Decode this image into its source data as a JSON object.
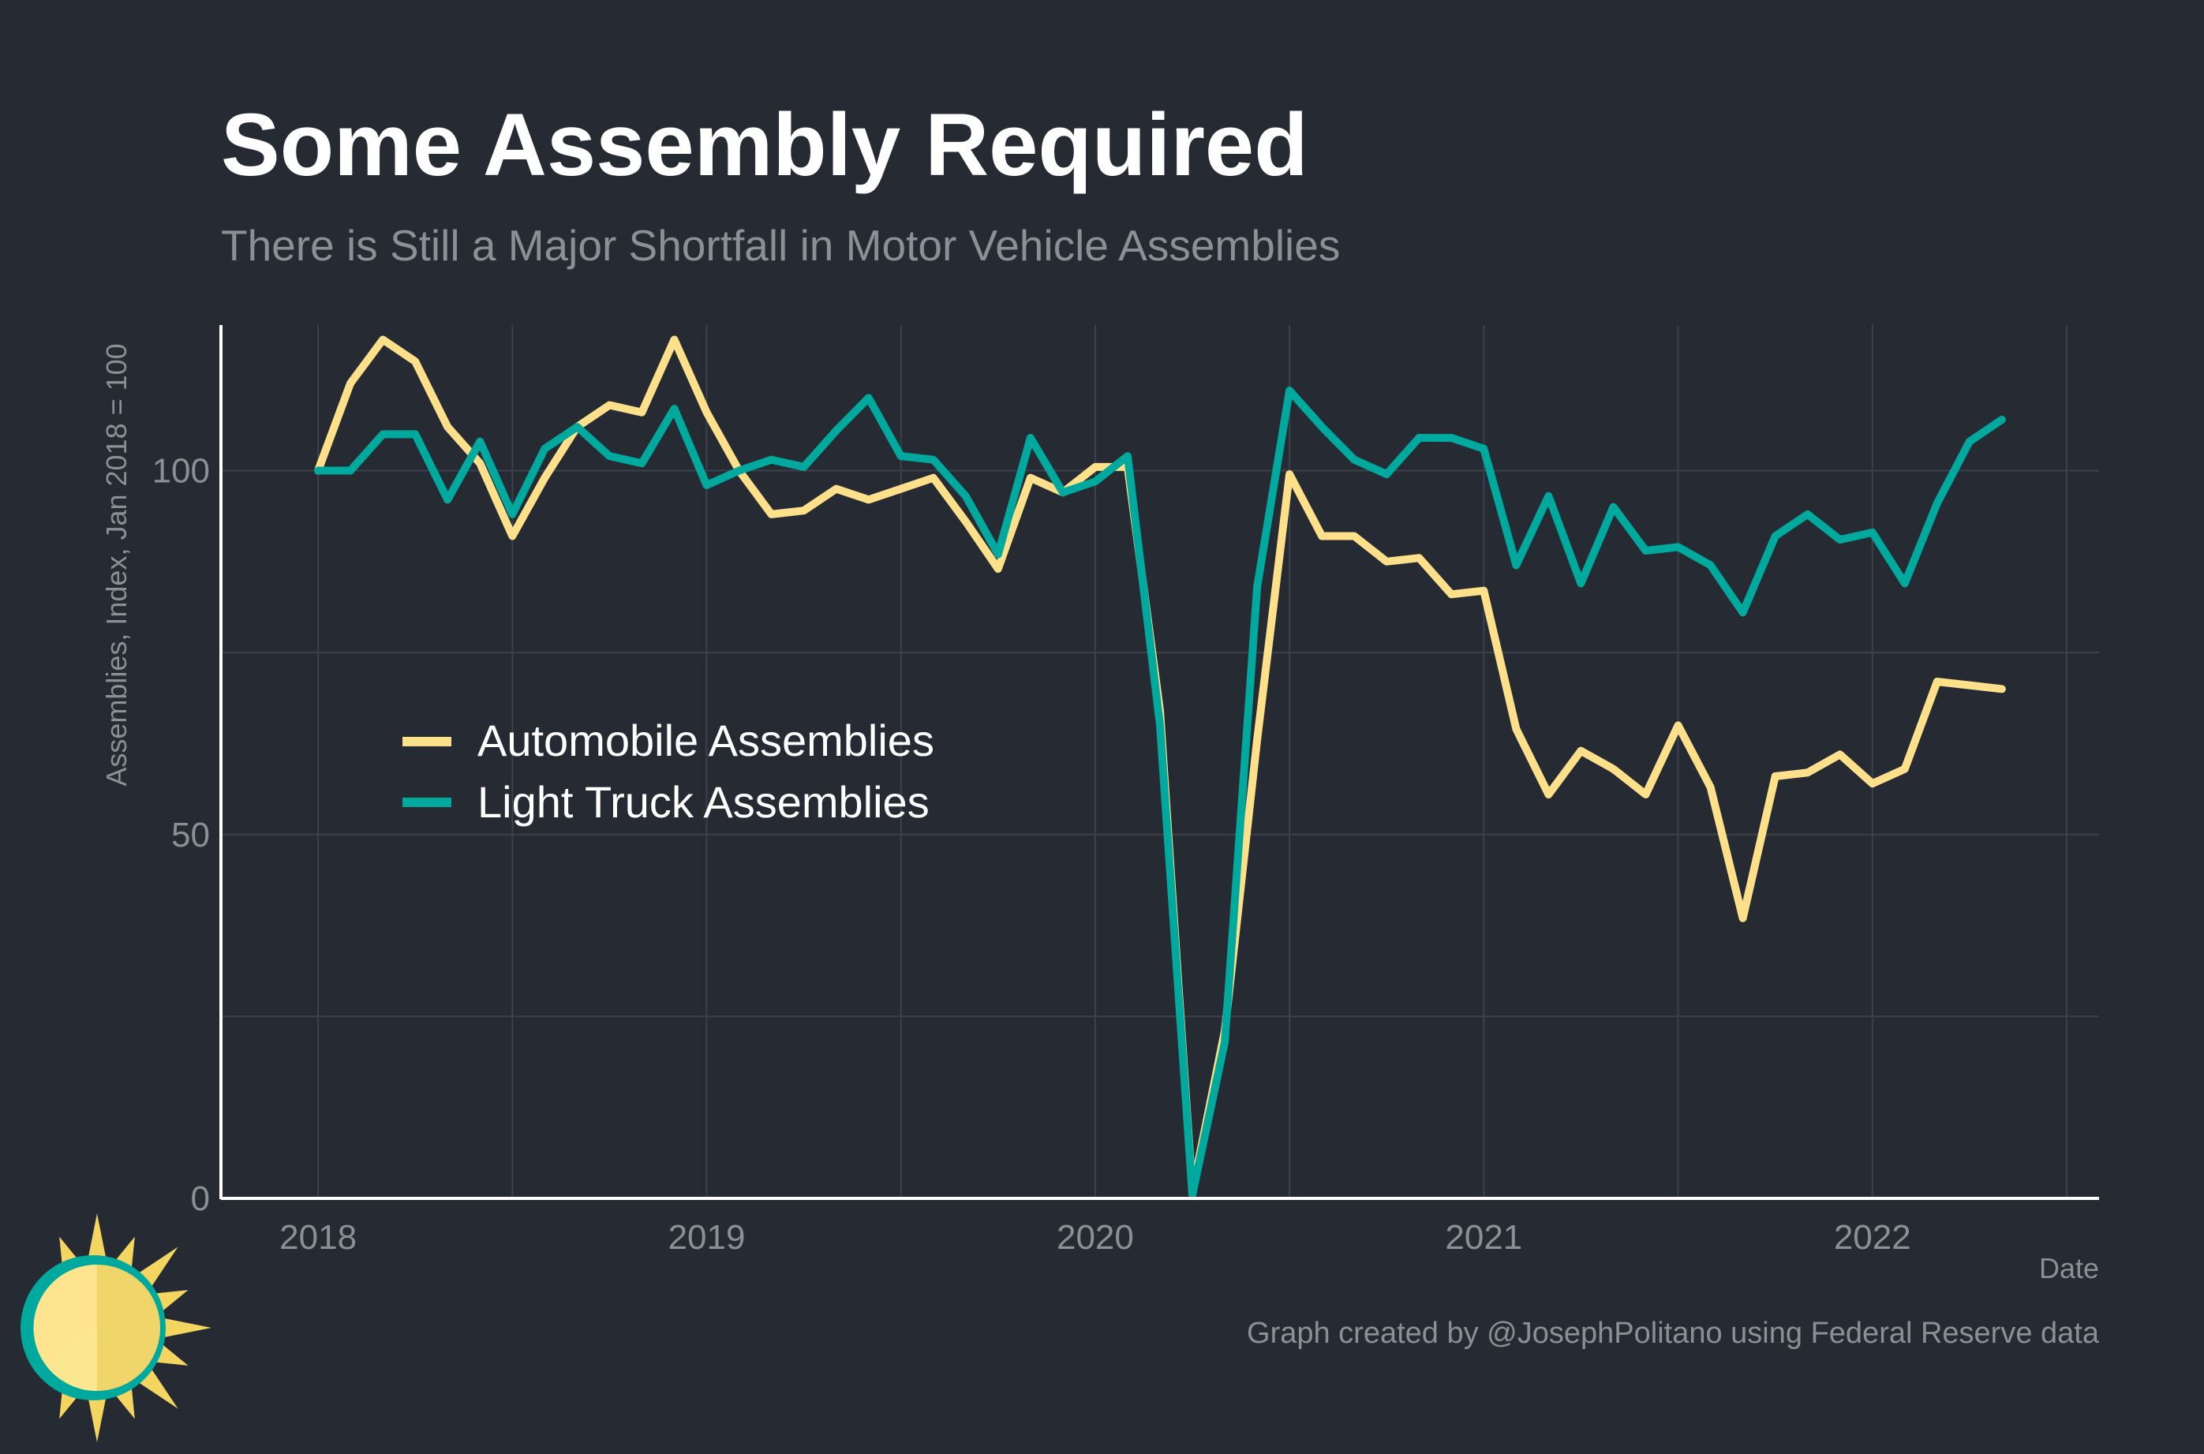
{
  "colors": {
    "background": "#252a33",
    "grid": "#3c414b",
    "axis": "#ffffff",
    "muted_text": "#8c8f96",
    "automobile": "#fee08b",
    "light_truck": "#00a99d"
  },
  "icon": "sun-logo-icon",
  "chart_data": {
    "type": "line",
    "title": "Some Assembly Required",
    "subtitle": "There is Still a Major Shortfall in Motor Vehicle Assemblies",
    "xlabel": "Date",
    "ylabel": "Assemblies, Index, Jan 2018 = 100",
    "x_ticks": [
      "2018",
      "2019",
      "2020",
      "2021",
      "2022"
    ],
    "y_ticks": [
      "0",
      "50",
      "100"
    ],
    "ylim": [
      0,
      120
    ],
    "xlim": [
      "2017-10",
      "2022-08"
    ],
    "grid": true,
    "legend_position": "left-center",
    "caption": "Graph created by @JosephPolitano using Federal Reserve data",
    "x": [
      "2018-01",
      "2018-02",
      "2018-03",
      "2018-04",
      "2018-05",
      "2018-06",
      "2018-07",
      "2018-08",
      "2018-09",
      "2018-10",
      "2018-11",
      "2018-12",
      "2019-01",
      "2019-02",
      "2019-03",
      "2019-04",
      "2019-05",
      "2019-06",
      "2019-07",
      "2019-08",
      "2019-09",
      "2019-10",
      "2019-11",
      "2019-12",
      "2020-01",
      "2020-02",
      "2020-03",
      "2020-04",
      "2020-05",
      "2020-06",
      "2020-07",
      "2020-08",
      "2020-09",
      "2020-10",
      "2020-11",
      "2020-12",
      "2021-01",
      "2021-02",
      "2021-03",
      "2021-04",
      "2021-05",
      "2021-06",
      "2021-07",
      "2021-08",
      "2021-09",
      "2021-10",
      "2021-11",
      "2021-12",
      "2022-01",
      "2022-02",
      "2022-03",
      "2022-04",
      "2022-05"
    ],
    "series": [
      {
        "name": "Automobile Assemblies",
        "values": [
          100,
          112,
          118,
          115,
          106,
          101,
          91,
          99,
          106,
          109,
          108,
          118,
          108,
          100,
          94,
          94.5,
          97.5,
          96,
          97.5,
          99,
          93,
          86.5,
          99,
          97,
          100.5,
          100.5,
          67,
          1,
          23,
          63,
          99.5,
          91,
          91,
          87.5,
          88,
          83,
          83.5,
          64.5,
          55.5,
          61.5,
          59,
          55.5,
          65,
          56.5,
          38.5,
          58,
          58.5,
          61,
          57,
          59,
          71,
          70.5,
          70
        ]
      },
      {
        "name": "Light Truck Assemblies",
        "values": [
          100,
          100,
          105,
          105,
          96,
          104,
          94,
          103,
          106,
          102,
          101,
          108.5,
          98,
          100,
          101.5,
          100.5,
          105.5,
          110,
          102,
          101.5,
          96.5,
          88.5,
          104.5,
          97,
          98.5,
          102,
          65,
          0.5,
          21.5,
          84,
          111,
          106,
          101.5,
          99.5,
          104.5,
          104.5,
          103,
          87,
          96.5,
          84.5,
          95,
          89,
          89.5,
          87,
          80.5,
          91,
          94,
          90.5,
          91.5,
          84.5,
          95.5,
          104,
          107
        ]
      }
    ]
  }
}
